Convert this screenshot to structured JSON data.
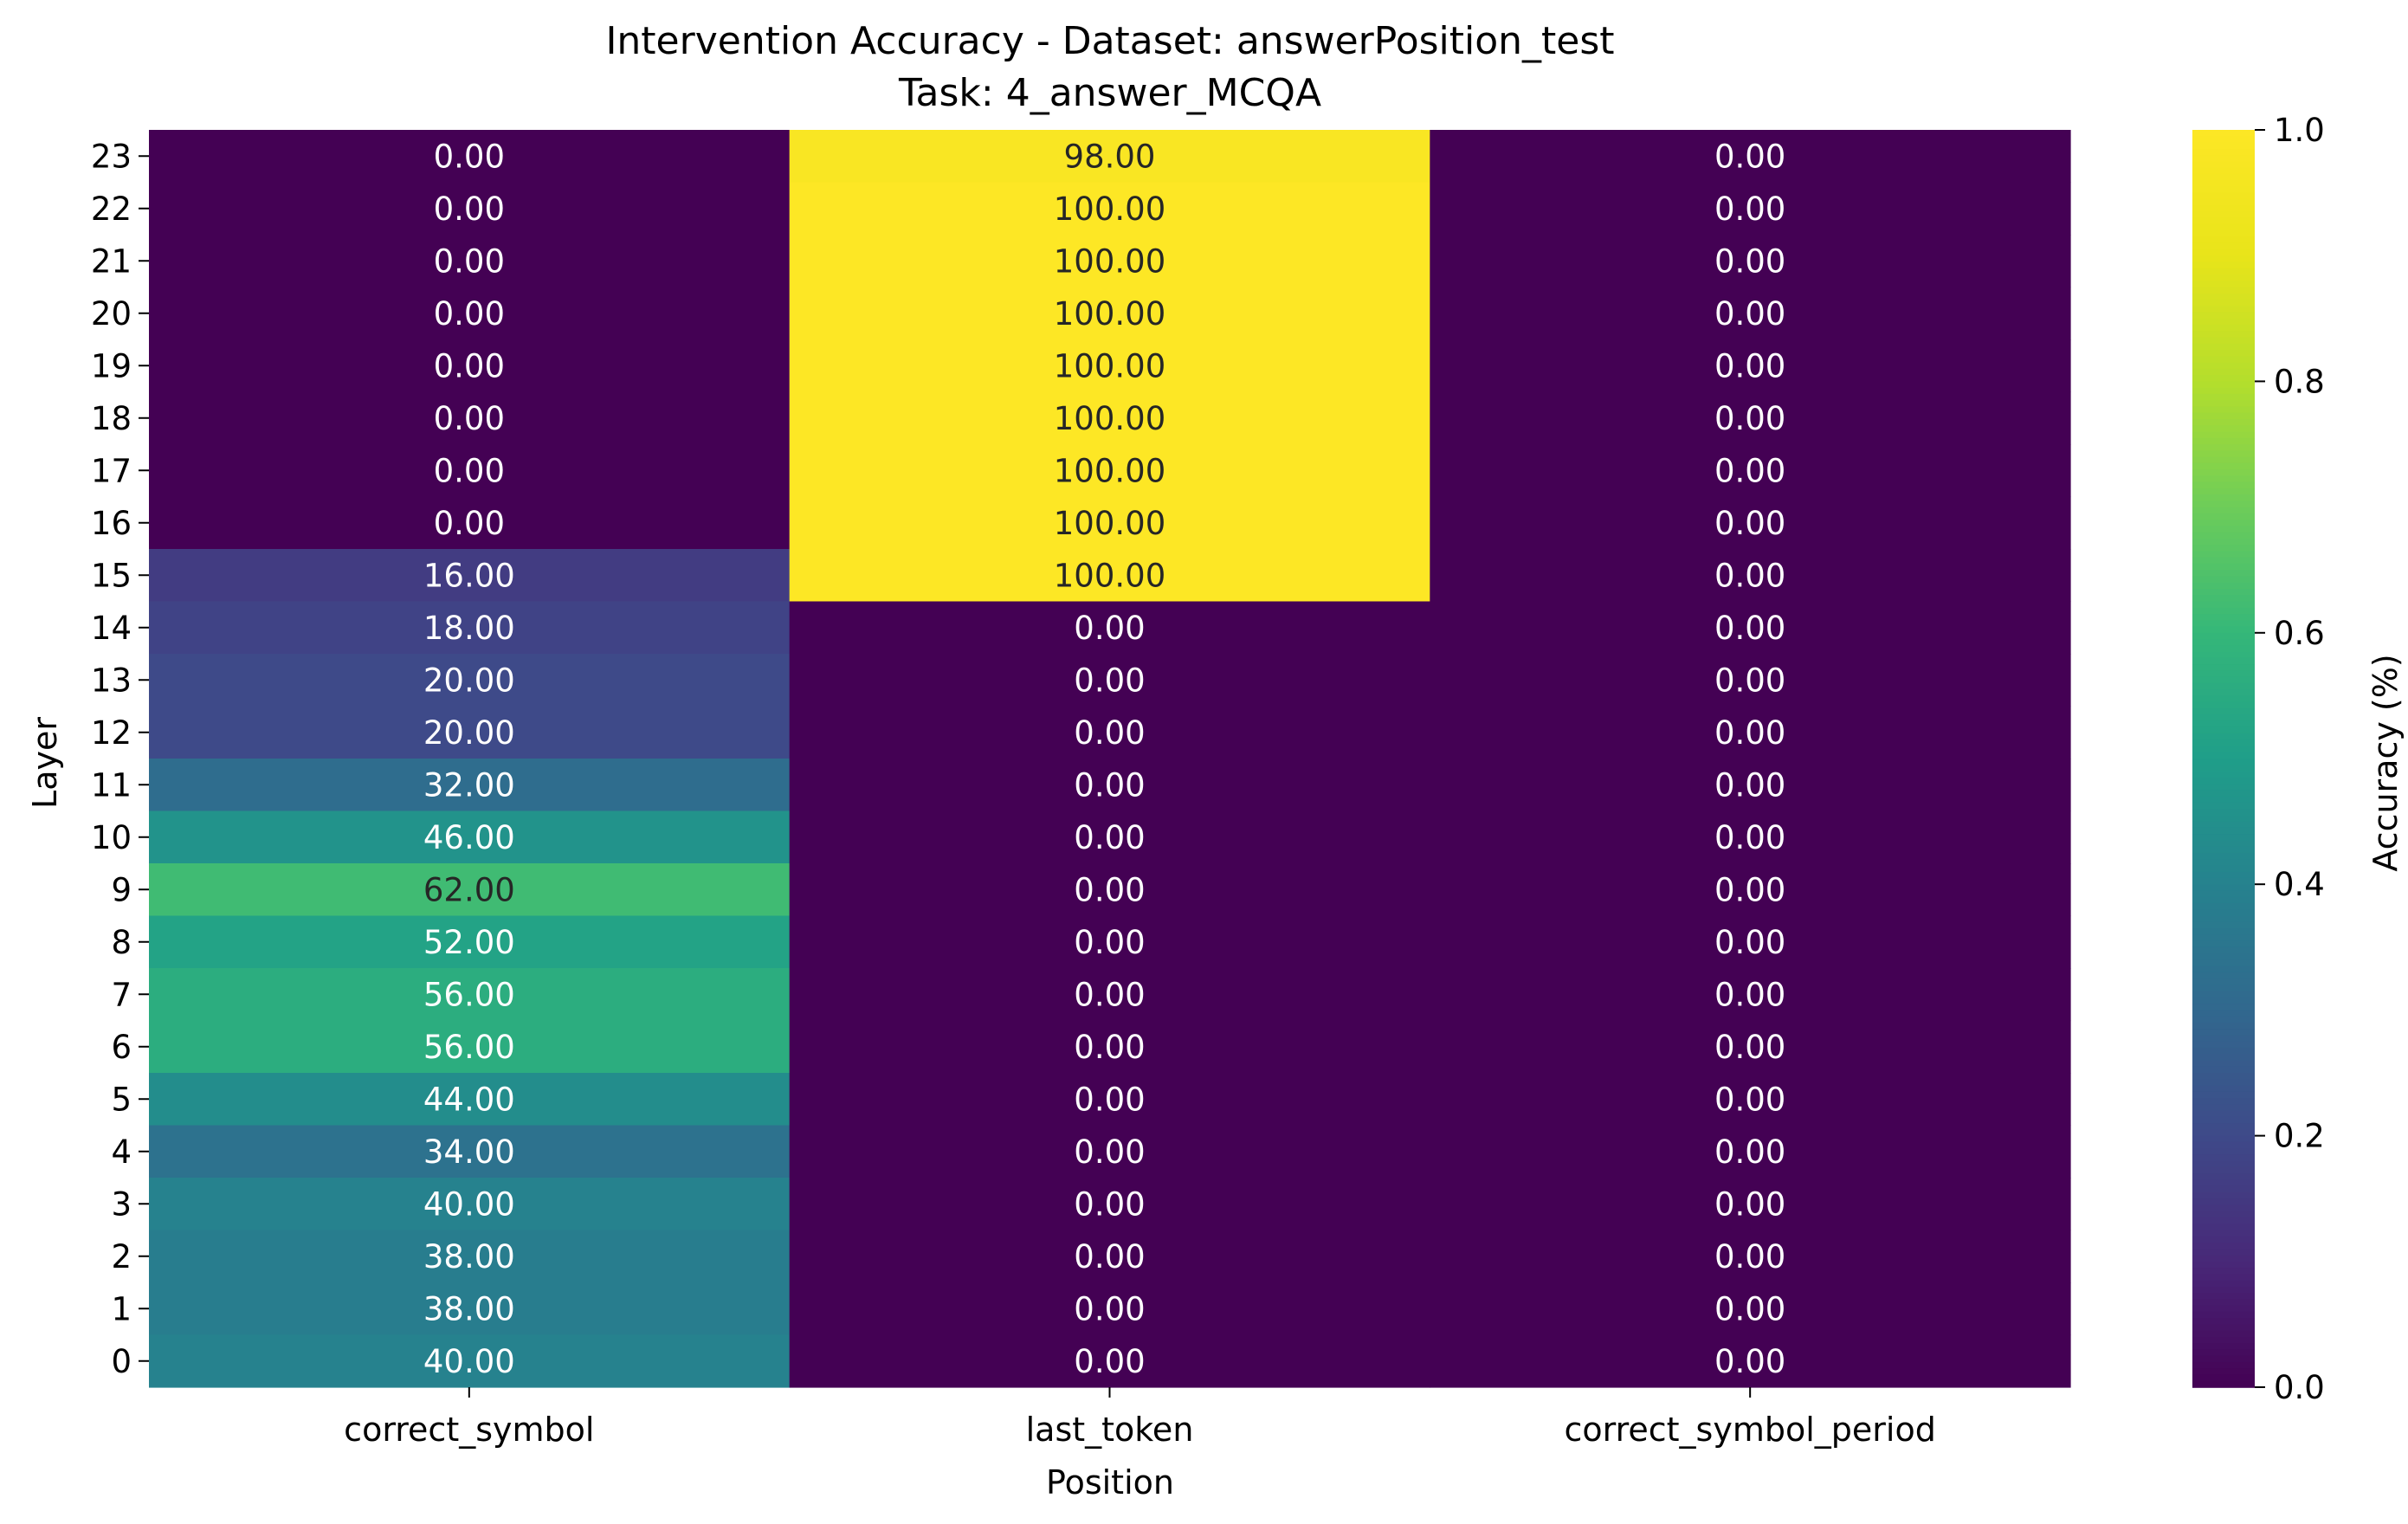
{
  "chart_data": {
    "type": "heatmap",
    "title": "Intervention Accuracy - Dataset: answerPosition_test",
    "subtitle": "Task: 4_answer_MCQA",
    "xlabel": "Position",
    "ylabel": "Layer",
    "colorbar_label": "Accuracy (%)",
    "colormap": "viridis",
    "vmin": 0.0,
    "vmax": 1.0,
    "colorbar_ticks": [
      "0.0",
      "0.2",
      "0.4",
      "0.6",
      "0.8",
      "1.0"
    ],
    "x_categories": [
      "correct_symbol",
      "last_token",
      "correct_symbol_period"
    ],
    "y_categories": [
      "23",
      "22",
      "21",
      "20",
      "19",
      "18",
      "17",
      "16",
      "15",
      "14",
      "13",
      "12",
      "11",
      "10",
      "9",
      "8",
      "7",
      "6",
      "5",
      "4",
      "3",
      "2",
      "1",
      "0"
    ],
    "values": [
      [
        0,
        98,
        0
      ],
      [
        0,
        100,
        0
      ],
      [
        0,
        100,
        0
      ],
      [
        0,
        100,
        0
      ],
      [
        0,
        100,
        0
      ],
      [
        0,
        100,
        0
      ],
      [
        0,
        100,
        0
      ],
      [
        0,
        100,
        0
      ],
      [
        16,
        100,
        0
      ],
      [
        18,
        0,
        0
      ],
      [
        20,
        0,
        0
      ],
      [
        20,
        0,
        0
      ],
      [
        32,
        0,
        0
      ],
      [
        46,
        0,
        0
      ],
      [
        62,
        0,
        0
      ],
      [
        52,
        0,
        0
      ],
      [
        56,
        0,
        0
      ],
      [
        56,
        0,
        0
      ],
      [
        44,
        0,
        0
      ],
      [
        34,
        0,
        0
      ],
      [
        40,
        0,
        0
      ],
      [
        38,
        0,
        0
      ],
      [
        38,
        0,
        0
      ],
      [
        40,
        0,
        0
      ]
    ],
    "value_labels": [
      [
        "0.00",
        "98.00",
        "0.00"
      ],
      [
        "0.00",
        "100.00",
        "0.00"
      ],
      [
        "0.00",
        "100.00",
        "0.00"
      ],
      [
        "0.00",
        "100.00",
        "0.00"
      ],
      [
        "0.00",
        "100.00",
        "0.00"
      ],
      [
        "0.00",
        "100.00",
        "0.00"
      ],
      [
        "0.00",
        "100.00",
        "0.00"
      ],
      [
        "0.00",
        "100.00",
        "0.00"
      ],
      [
        "16.00",
        "100.00",
        "0.00"
      ],
      [
        "18.00",
        "0.00",
        "0.00"
      ],
      [
        "20.00",
        "0.00",
        "0.00"
      ],
      [
        "20.00",
        "0.00",
        "0.00"
      ],
      [
        "32.00",
        "0.00",
        "0.00"
      ],
      [
        "46.00",
        "0.00",
        "0.00"
      ],
      [
        "62.00",
        "0.00",
        "0.00"
      ],
      [
        "52.00",
        "0.00",
        "0.00"
      ],
      [
        "56.00",
        "0.00",
        "0.00"
      ],
      [
        "56.00",
        "0.00",
        "0.00"
      ],
      [
        "44.00",
        "0.00",
        "0.00"
      ],
      [
        "34.00",
        "0.00",
        "0.00"
      ],
      [
        "40.00",
        "0.00",
        "0.00"
      ],
      [
        "38.00",
        "0.00",
        "0.00"
      ],
      [
        "38.00",
        "0.00",
        "0.00"
      ],
      [
        "40.00",
        "0.00",
        "0.00"
      ]
    ]
  }
}
